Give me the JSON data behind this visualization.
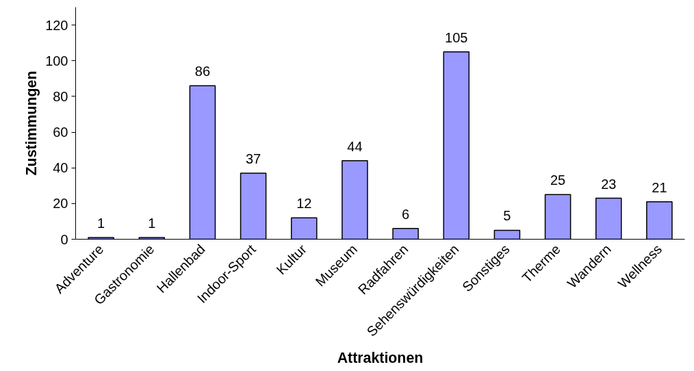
{
  "chart_data": {
    "type": "bar",
    "xlabel": "Attraktionen",
    "ylabel": "Zustimmungen",
    "categories": [
      "Adventure",
      "Gastronomie",
      "Hallenbad",
      "Indoor-Sport",
      "Kultur",
      "Museum",
      "Radfahren",
      "Sehenswürdigkeiten",
      "Sonstiges",
      "Therme",
      "Wandern",
      "Wellness"
    ],
    "values": [
      1,
      1,
      86,
      37,
      12,
      44,
      6,
      105,
      5,
      25,
      23,
      21
    ],
    "color": "#9999ff",
    "ylim": [
      0,
      130
    ],
    "yticks": [
      0,
      20,
      40,
      60,
      80,
      100,
      120
    ],
    "grid": false,
    "data_labels": true
  }
}
